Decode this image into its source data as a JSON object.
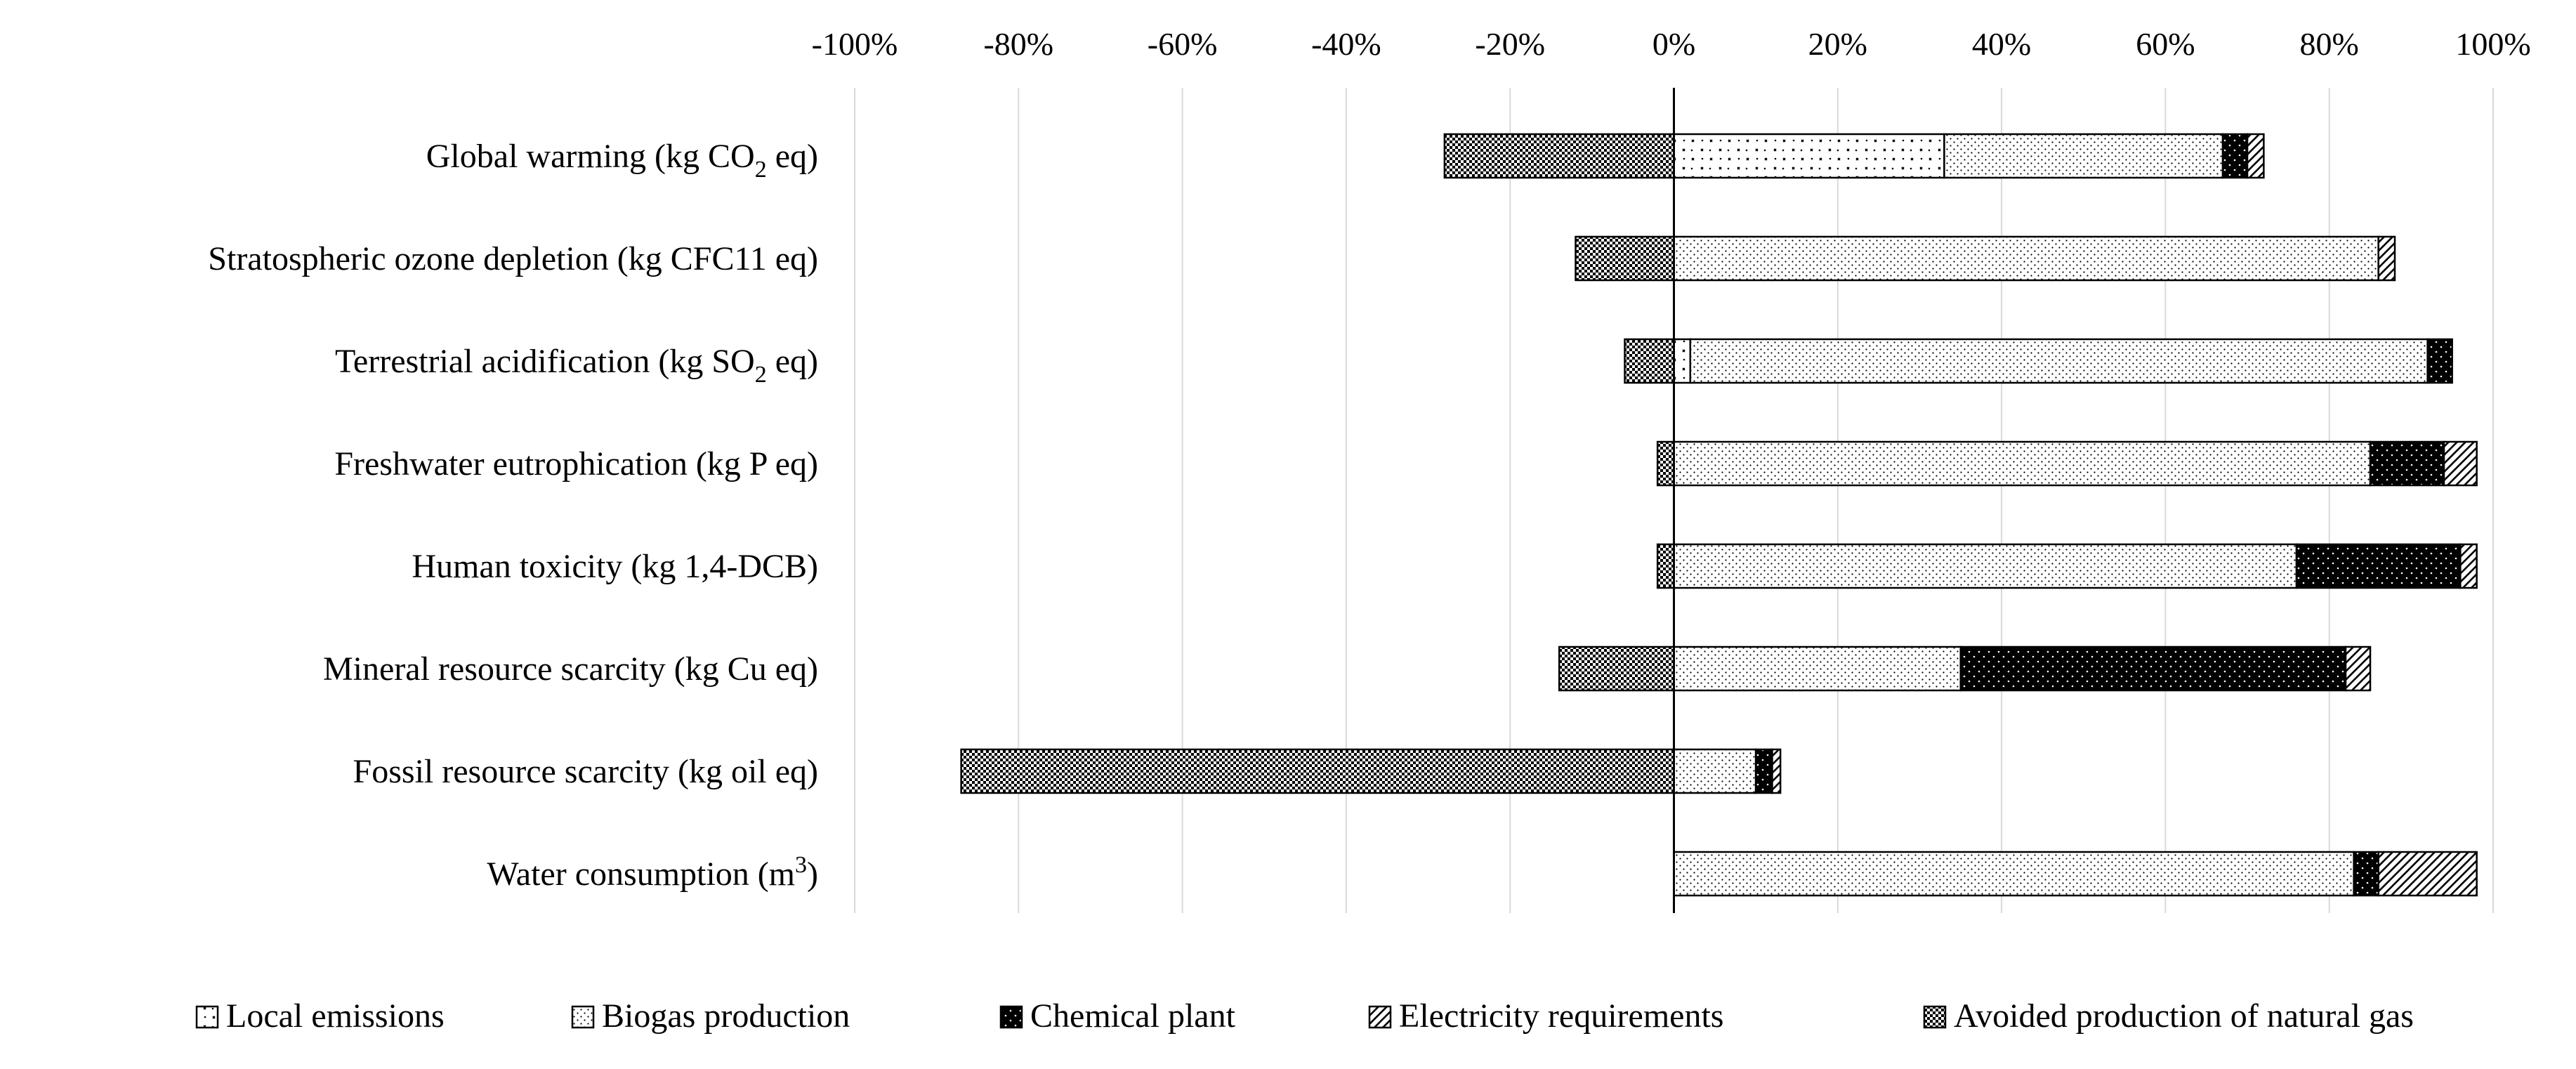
{
  "chart_data": {
    "type": "bar",
    "orientation": "horizontal",
    "stacked": true,
    "title": "",
    "xlabel": "",
    "ylabel": "",
    "xlim": [
      -100,
      100
    ],
    "x_ticks": [
      "-100%",
      "-80%",
      "-60%",
      "-40%",
      "-20%",
      "0%",
      "20%",
      "40%",
      "60%",
      "80%",
      "100%"
    ],
    "grid": true,
    "legend_position": "bottom",
    "categories": [
      {
        "label": "Global warming (kg CO",
        "sub": "2",
        "tail": " eq)"
      },
      {
        "label": "Stratospheric ozone depletion (kg CFC11 eq)",
        "sub": "",
        "tail": ""
      },
      {
        "label": "Terrestrial acidification (kg SO",
        "sub": "2",
        "tail": " eq)"
      },
      {
        "label": "Freshwater eutrophication (kg P eq)",
        "sub": "",
        "tail": ""
      },
      {
        "label": "Human toxicity (kg 1,4-DCB)",
        "sub": "",
        "tail": ""
      },
      {
        "label": "Mineral resource scarcity (kg Cu eq)",
        "sub": "",
        "tail": ""
      },
      {
        "label": "Fossil resource scarcity (kg oil eq)",
        "sub": "",
        "tail": ""
      },
      {
        "label": "Water consumption (m",
        "sup": "3",
        "tail": ")"
      }
    ],
    "series": [
      {
        "name": "Local emissions",
        "pattern": "local",
        "values": [
          33,
          0,
          2,
          0,
          0,
          0,
          0,
          0
        ]
      },
      {
        "name": "Biogas production",
        "pattern": "biogas",
        "values": [
          34,
          86,
          90,
          85,
          76,
          35,
          10,
          83
        ]
      },
      {
        "name": "Chemical plant",
        "pattern": "chemical",
        "values": [
          3,
          0,
          3,
          9,
          20,
          47,
          2,
          3
        ]
      },
      {
        "name": "Electricity requirements",
        "pattern": "electricity",
        "values": [
          2,
          2,
          0,
          4,
          2,
          3,
          1,
          12
        ]
      },
      {
        "name": "Avoided production of natural gas",
        "pattern": "avoided",
        "values": [
          -28,
          -12,
          -6,
          -2,
          -2,
          -14,
          -87,
          0
        ]
      }
    ]
  }
}
